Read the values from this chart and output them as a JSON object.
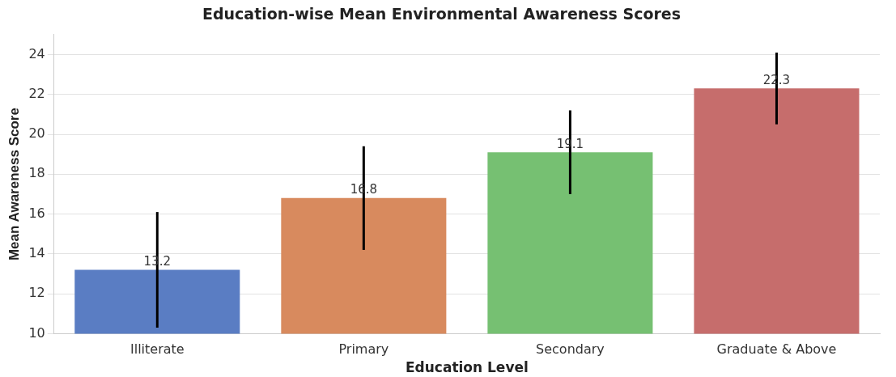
{
  "chart_data": {
    "type": "bar",
    "title": "Education-wise Mean Environmental Awareness Scores",
    "xlabel": "Education Level",
    "ylabel": "Mean Awareness Score",
    "categories": [
      "Illiterate",
      "Primary",
      "Secondary",
      "Graduate & Above"
    ],
    "values": [
      13.2,
      16.8,
      19.1,
      22.3
    ],
    "errors": [
      2.9,
      2.6,
      2.1,
      1.8
    ],
    "colors": [
      "#5a7dc3",
      "#d88a5e",
      "#76c072",
      "#c66d6c"
    ],
    "ylim": [
      10,
      25
    ],
    "yticks": [
      10,
      12,
      14,
      16,
      18,
      20,
      22,
      24
    ],
    "grid": "y",
    "data_labels": true
  }
}
